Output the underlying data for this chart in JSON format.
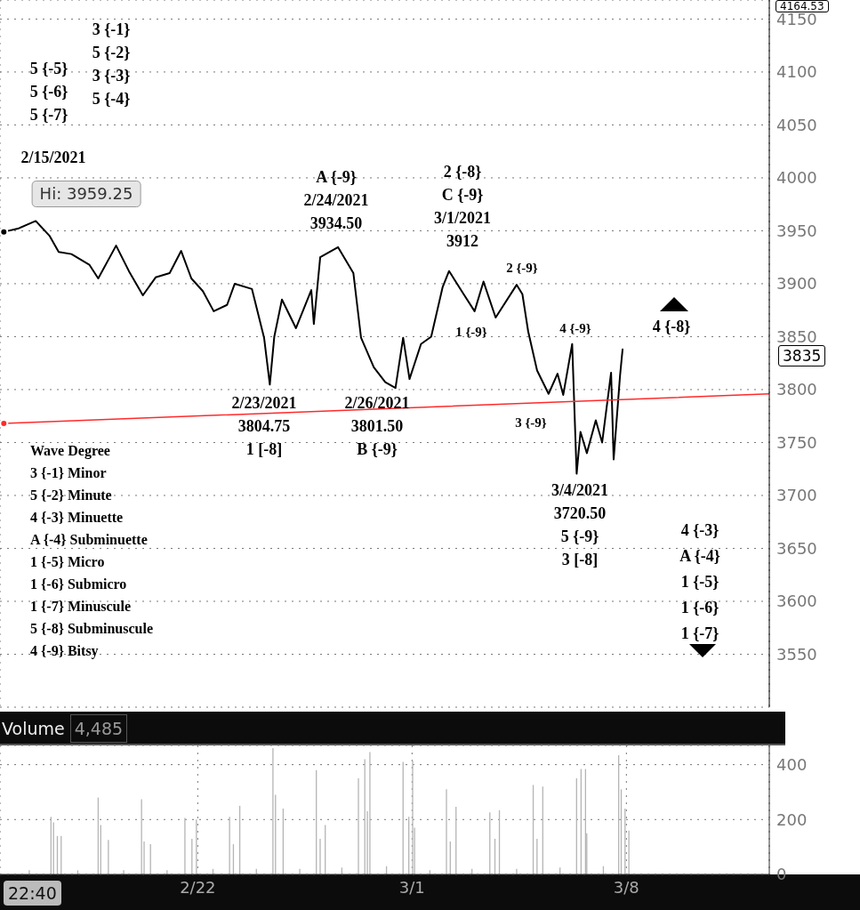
{
  "chart_data": [
    {
      "type": "line",
      "series": [
        {
          "color": "#000000",
          "x": [
            "2021-02-15T16:00",
            "2021-02-16T03:00",
            "2021-02-16T17:00",
            "2021-02-17T04:00",
            "2021-02-17T11:00",
            "2021-02-17T21:00",
            "2021-02-18T11:00",
            "2021-02-18T18:00",
            "2021-02-19T08:00",
            "2021-02-19T18:00",
            "2021-02-20T05:00",
            "2021-02-20T15:00",
            "2021-02-21T02:00",
            "2021-02-21T11:00",
            "2021-02-21T19:00",
            "2021-02-22T04:00",
            "2021-02-22T12:30",
            "2021-02-22T23:00",
            "2021-02-23T05:00",
            "2021-02-23T18:30",
            "2021-02-24T04:00",
            "2021-02-24T08:30",
            "2021-02-24T12:00",
            "2021-02-24T18:00",
            "2021-02-25T05:00",
            "2021-02-25T17:00",
            "2021-02-25T19:00",
            "2021-02-26T00:00",
            "2021-02-26T14:00",
            "2021-02-27T02:00",
            "2021-02-27T08:00",
            "2021-02-27T18:00",
            "2021-02-28T03:00",
            "2021-02-28T11:00",
            "2021-02-28T17:00",
            "2021-02-28T22:00",
            "2021-03-01T07:00",
            "2021-03-01T15:00",
            "2021-03-02T00:00",
            "2021-03-02T05:00",
            "2021-03-02T16:00",
            "2021-03-03T01:00",
            "2021-03-03T08:00",
            "2021-03-03T17:30",
            "2021-03-04T10:00",
            "2021-03-04T14:30",
            "2021-03-04T19:00",
            "2021-03-05T02:00",
            "2021-03-05T11:00",
            "2021-03-05T18:00",
            "2021-03-05T22:30",
            "2021-03-06T05:30",
            "2021-03-06T09:00",
            "2021-03-06T12:00",
            "2021-03-06T17:00",
            "2021-03-07T00:00",
            "2021-03-07T05:00",
            "2021-03-07T12:00",
            "2021-03-07T14:00",
            "2021-03-07T19:00",
            "2021-03-07T21:00"
          ],
          "values": [
            3949,
            3952,
            3959.25,
            3945,
            3930,
            3928,
            3918,
            3905,
            3936,
            3912,
            3889,
            3906,
            3910,
            3931,
            3905,
            3893,
            3874,
            3880,
            3900,
            3895,
            3849,
            3804.75,
            3850,
            3885,
            3858,
            3894,
            3862,
            3925,
            3934.5,
            3910,
            3849,
            3821,
            3807,
            3801.5,
            3849,
            3810,
            3843,
            3850,
            3897,
            3912,
            3891,
            3874,
            3902,
            3868,
            3899,
            3890,
            3855,
            3818,
            3796,
            3815,
            3795,
            3843,
            3720.5,
            3760,
            3740,
            3771,
            3750,
            3816,
            3734,
            3813,
            3838
          ]
        },
        {
          "type": "line",
          "color": "#ff2a2a",
          "x": [
            "2021-02-15T16:00",
            "2021-03-12T16:00"
          ],
          "values": [
            3768,
            3796
          ]
        }
      ],
      "xlim": [
        "2021-02-15T13:00",
        "2021-03-12T16:00"
      ],
      "xticks": [
        {
          "value": "2021-02-22",
          "label": null
        },
        {
          "value": "2021-03-01",
          "label": null
        },
        {
          "value": "2021-03-08",
          "label": null
        }
      ],
      "ylim": [
        3500,
        4168
      ],
      "yticks": [
        3550,
        3600,
        3650,
        3700,
        3750,
        3800,
        3850,
        3900,
        3950,
        4000,
        4050,
        4100,
        4150
      ],
      "grid": true,
      "tick_labels": "y",
      "annotations": [
        "3 {-1}\n5 {-2}\n3 {-3}\n5 {-4}",
        "5 {-5}\n5 {-6}\n5 {-7}",
        "2/15/2021",
        "Hi: 3959.25",
        "A {-9}\n2/24/2021\n3934.50",
        "2 {-8}\nC {-9}\n3/1/2021\n3912",
        "2 {-9}",
        "1 {-9}",
        "4 {-9}",
        "3 {-9}",
        "4 {-8}",
        "2/23/2021\n3804.75\n1 [-8]",
        "2/26/2021\n3801.50\nB {-9}",
        "3/4/2021\n3720.50\n5 {-9}\n3 [-8]",
        "4 {-3}\nA {-4}\n1 {-5}\n1 {-6}\n1 {-7}",
        "Wave Degree\n3 {-1} Minor\n5 {-2} Minute\n4 {-3} Minuette\nA {-4} Subminuette\n1 {-5} Micro\n1 {-6} Submicro\n1 {-7} Minuscule\n5 {-8} Subminuscule\n4 {-9} Bitsy",
        "3835",
        "4164.53"
      ]
    },
    {
      "type": "bar",
      "title": "Volume",
      "color": "#b4b4b4",
      "x": [
        "2021-02-16T12:00",
        "2021-02-17T05:00",
        "2021-02-17T07:00",
        "2021-02-17T10:00",
        "2021-02-17T13:00",
        "2021-02-18T02:00",
        "2021-02-18T18:00",
        "2021-02-18T20:00",
        "2021-02-19T02:00",
        "2021-02-19T14:00",
        "2021-02-20T04:00",
        "2021-02-20T06:00",
        "2021-02-20T11:00",
        "2021-02-21T00:00",
        "2021-02-21T14:00",
        "2021-02-21T19:30",
        "2021-02-21T23:00",
        "2021-02-22T12:00",
        "2021-02-23T01:00",
        "2021-02-23T04:00",
        "2021-02-23T09:00",
        "2021-02-23T22:00",
        "2021-02-24T11:00",
        "2021-02-24T13:00",
        "2021-02-24T19:00",
        "2021-02-25T08:00",
        "2021-02-25T21:00",
        "2021-02-26T00:00",
        "2021-02-26T04:00",
        "2021-02-26T17:00",
        "2021-02-27T06:00",
        "2021-02-27T11:00",
        "2021-02-27T13:00",
        "2021-02-27T15:00",
        "2021-02-28T04:00",
        "2021-02-28T17:00",
        "2021-02-28T21:30",
        "2021-03-01T00:30",
        "2021-03-01T02:00",
        "2021-03-01T14:00",
        "2021-03-02T03:00",
        "2021-03-02T06:00",
        "2021-03-02T10:30",
        "2021-03-02T23:00",
        "2021-03-03T13:00",
        "2021-03-03T17:00",
        "2021-03-03T20:30",
        "2021-03-04T10:00",
        "2021-03-04T23:00",
        "2021-03-05T02:00",
        "2021-03-05T06:30",
        "2021-03-05T20:00",
        "2021-03-06T09:00",
        "2021-03-06T12:30",
        "2021-03-06T16:00",
        "2021-03-06T17:00",
        "2021-03-07T06:00",
        "2021-03-07T18:00",
        "2021-03-07T20:00",
        "2021-03-07T23:00",
        "2021-03-08T02:00"
      ],
      "values": [
        15,
        210,
        190,
        140,
        140,
        15,
        280,
        180,
        126,
        15,
        274,
        120,
        110,
        15,
        206,
        130,
        200,
        20,
        210,
        110,
        250,
        20,
        460,
        290,
        240,
        20,
        380,
        130,
        180,
        25,
        350,
        420,
        230,
        446,
        30,
        410,
        210,
        414,
        170,
        15,
        310,
        120,
        246,
        20,
        226,
        130,
        234,
        20,
        326,
        130,
        320,
        25,
        350,
        384,
        384,
        150,
        30,
        434,
        310,
        240,
        160
      ],
      "xlim": [
        "2021-02-15T13:00",
        "2021-03-12T16:00"
      ],
      "xticks": [
        {
          "value": "2021-02-22",
          "label": "2/22"
        },
        {
          "value": "2021-03-01",
          "label": "3/1"
        },
        {
          "value": "2021-03-08",
          "label": "3/8"
        }
      ],
      "ylim": [
        0,
        470
      ],
      "yticks": [
        0,
        200,
        400
      ],
      "grid": true,
      "annotations": [
        "4,485",
        "22:40"
      ]
    }
  ]
}
